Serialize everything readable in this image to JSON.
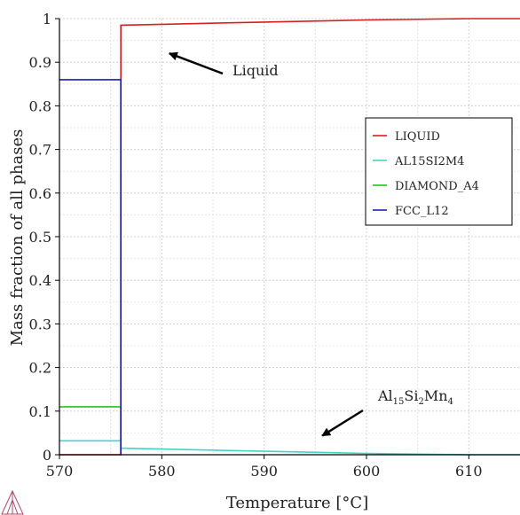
{
  "chart_data": {
    "type": "line",
    "xlabel": "Temperature [°C]",
    "ylabel": "Mass fraction of all phases",
    "xlim": [
      570,
      615
    ],
    "ylim": [
      0,
      1
    ],
    "x_ticks": [
      570,
      580,
      590,
      600,
      610
    ],
    "x_tick_labels": [
      "570",
      "580",
      "590",
      "600",
      "610"
    ],
    "y_ticks": [
      0,
      0.1,
      0.2,
      0.3,
      0.4,
      0.5,
      0.6,
      0.7,
      0.8,
      0.9,
      1
    ],
    "y_tick_labels": [
      "0",
      "0.1",
      "0.2",
      "0.3",
      "0.4",
      "0.5",
      "0.6",
      "0.7",
      "0.8",
      "0.9",
      "1"
    ],
    "grid": true,
    "legend_position": "right",
    "series": [
      {
        "name": "LIQUID",
        "color": "#d62020",
        "points": [
          [
            570,
            0
          ],
          [
            576,
            0
          ],
          [
            576,
            0.985
          ],
          [
            580,
            0.987
          ],
          [
            590,
            0.992
          ],
          [
            600,
            0.997
          ],
          [
            610,
            1.0
          ],
          [
            615,
            1.0
          ]
        ]
      },
      {
        "name": "AL15SI2M4",
        "color": "#3fd6c4",
        "points": [
          [
            570,
            0.032
          ],
          [
            576,
            0.032
          ],
          [
            576,
            0.015
          ],
          [
            580,
            0.013
          ],
          [
            590,
            0.008
          ],
          [
            600,
            0.003
          ],
          [
            610,
            0.0
          ],
          [
            615,
            0.0
          ]
        ]
      },
      {
        "name": "DIAMOND_A4",
        "color": "#27c21f",
        "points": [
          [
            570,
            0.11
          ],
          [
            576,
            0.11
          ],
          [
            576,
            0.0
          ]
        ]
      },
      {
        "name": "FCC_L12",
        "color": "#1f1fb0",
        "points": [
          [
            570,
            0.86
          ],
          [
            576,
            0.86
          ],
          [
            576,
            0.0
          ]
        ]
      }
    ],
    "annotations": [
      {
        "text": "Liquid",
        "target": [
          579,
          0.965
        ]
      },
      {
        "text_parts": [
          {
            "text": "Al",
            "sub": false
          },
          {
            "text": "15",
            "sub": true
          },
          {
            "text": "Si",
            "sub": false
          },
          {
            "text": "2",
            "sub": true
          },
          {
            "text": "Mn",
            "sub": false
          },
          {
            "text": "4",
            "sub": true
          }
        ],
        "target": [
          595.5,
          0.015
        ]
      }
    ]
  }
}
